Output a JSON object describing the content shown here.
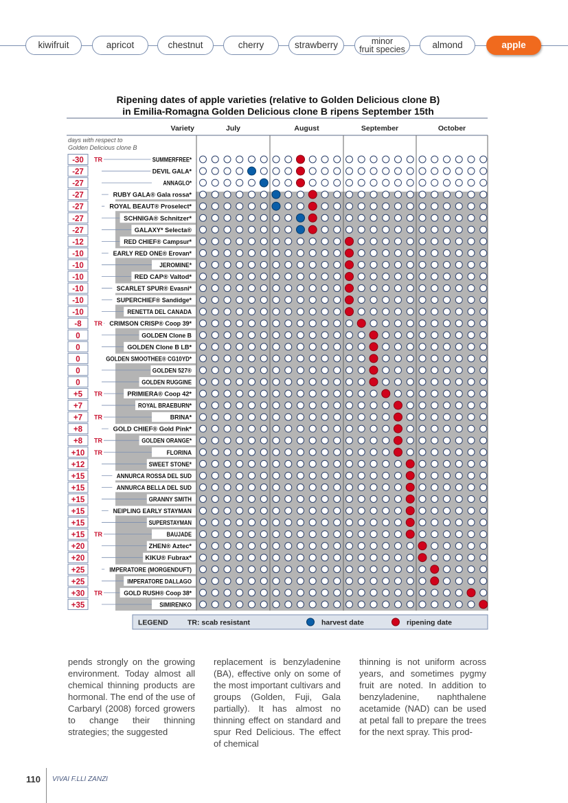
{
  "tabs": [
    {
      "label": "kiwifruit"
    },
    {
      "label": "apricot"
    },
    {
      "label": "chestnut"
    },
    {
      "label": "cherry"
    },
    {
      "label": "strawberry"
    },
    {
      "label": "minor",
      "label2": "fruit species"
    },
    {
      "label": "almond"
    },
    {
      "label": "apple",
      "active": true
    }
  ],
  "title": {
    "line1": "Ripening dates of apple varieties (relative to Golden Delicious clone B)",
    "line2": "in Emilia-Romagna Golden Delicious clone B ripens September 15th"
  },
  "chart_data": {
    "type": "table",
    "header": {
      "variety": "Variety",
      "months": [
        "July",
        "August",
        "September",
        "October"
      ]
    },
    "note_line1": "days with respect to",
    "note_line2": "Golden Delicious clone B",
    "days_per_month": [
      6,
      6,
      6,
      6
    ],
    "rows": [
      {
        "days": "-30",
        "tr": "TR",
        "name": "SUMMERFREE*",
        "ripen": 8
      },
      {
        "days": "-27",
        "tr": "",
        "name": "DEVIL GALA*",
        "harvest": 4,
        "ripen": 8
      },
      {
        "days": "-27",
        "tr": "",
        "name": "ANNAGLO*",
        "harvest": 5,
        "ripen": 8
      },
      {
        "days": "-27",
        "tr": "",
        "name": "RUBY GALA® Gala rossa*",
        "harvest": 6,
        "ripen": 9
      },
      {
        "days": "-27",
        "tr": "",
        "name": "ROYAL BEAUT® Proselect*",
        "harvest": 6,
        "ripen": 9
      },
      {
        "days": "-27",
        "tr": "",
        "name": "SCHNIGA® Schnitzer*",
        "harvest": 8,
        "ripen": 9
      },
      {
        "days": "-27",
        "tr": "",
        "name": "GALAXY* Selecta®",
        "harvest": 8,
        "ripen": 9
      },
      {
        "days": "-12",
        "tr": "",
        "name": "RED CHIEF® Campsur*",
        "ripen": 12
      },
      {
        "days": "-10",
        "tr": "",
        "name": "EARLY RED ONE® Erovan*",
        "ripen": 12
      },
      {
        "days": "-10",
        "tr": "",
        "name": "JEROMINE*",
        "ripen": 12
      },
      {
        "days": "-10",
        "tr": "",
        "name": "RED CAP® Valtod*",
        "ripen": 12
      },
      {
        "days": "-10",
        "tr": "",
        "name": "SCARLET SPUR® Evasni*",
        "ripen": 12
      },
      {
        "days": "-10",
        "tr": "",
        "name": "SUPERCHIEF® Sandidge*",
        "ripen": 12
      },
      {
        "days": "-10",
        "tr": "",
        "name": "RENETTA DEL CANADA",
        "ripen": 12
      },
      {
        "days": "-8",
        "tr": "TR",
        "name": "CRIMSON CRISP® Coop 39*",
        "ripen": 13
      },
      {
        "days": "0",
        "tr": "",
        "name": "GOLDEN Clone B",
        "ripen": 14
      },
      {
        "days": "0",
        "tr": "",
        "name": "GOLDEN Clone B LB*",
        "ripen": 14
      },
      {
        "days": "0",
        "tr": "",
        "name": "GOLDEN SMOOTHEE® CG10YD*",
        "ripen": 14
      },
      {
        "days": "0",
        "tr": "",
        "name": "GOLDEN 527®",
        "ripen": 14
      },
      {
        "days": "0",
        "tr": "",
        "name": "GOLDEN RUGGINE",
        "ripen": 14
      },
      {
        "days": "+5",
        "tr": "TR",
        "name": "PRIMIERA® Coop 42*",
        "ripen": 15
      },
      {
        "days": "+7",
        "tr": "",
        "name": "ROYAL BRAEBURN*",
        "ripen": 16
      },
      {
        "days": "+7",
        "tr": "TR",
        "name": "BRINA*",
        "ripen": 16
      },
      {
        "days": "+8",
        "tr": "",
        "name": "GOLD CHIEF® Gold Pink*",
        "ripen": 16
      },
      {
        "days": "+8",
        "tr": "TR",
        "name": "GOLDEN ORANGE*",
        "ripen": 16
      },
      {
        "days": "+10",
        "tr": "TR",
        "name": "FLORINA",
        "ripen": 16
      },
      {
        "days": "+12",
        "tr": "",
        "name": "SWEET STONE*",
        "ripen": 17
      },
      {
        "days": "+15",
        "tr": "",
        "name": "ANNURCA ROSSA DEL SUD",
        "ripen": 17
      },
      {
        "days": "+15",
        "tr": "",
        "name": "ANNURCA BELLA DEL SUD",
        "ripen": 17
      },
      {
        "days": "+15",
        "tr": "",
        "name": "GRANNY SMITH",
        "ripen": 17
      },
      {
        "days": "+15",
        "tr": "",
        "name": "NEIPLING EARLY STAYMAN",
        "ripen": 17
      },
      {
        "days": "+15",
        "tr": "",
        "name": "SUPERSTAYMAN",
        "ripen": 17
      },
      {
        "days": "+15",
        "tr": "TR",
        "name": "BAUJADE",
        "ripen": 17
      },
      {
        "days": "+20",
        "tr": "",
        "name": "ZHEN® Aztec*",
        "ripen": 18
      },
      {
        "days": "+20",
        "tr": "",
        "name": "KIKU® Fubrax*",
        "ripen": 18
      },
      {
        "days": "+25",
        "tr": "",
        "name": "IMPERATORE (MORGENDUFT)",
        "ripen": 19
      },
      {
        "days": "+25",
        "tr": "",
        "name": "IMPERATORE DALLAGO",
        "ripen": 19
      },
      {
        "days": "+30",
        "tr": "TR",
        "name": "GOLD RUSH® Coop 38*",
        "ripen": 22
      },
      {
        "days": "+35",
        "tr": "",
        "name": "SIMIRENKO",
        "ripen": 23
      }
    ],
    "legend": {
      "title": "LEGEND",
      "tr": "TR: scab resistant",
      "harvest": "harvest date",
      "ripening": "ripening date"
    },
    "colors": {
      "ripening": "#d0021b",
      "harvest": "#0a5ea8",
      "days_text": "#c8102e",
      "band": "#b4b4b4",
      "legend_bg": "#dde3ec"
    }
  },
  "body": {
    "col1": "pends strongly on the growing environment. Today almost all chemical thinning products are hormonal. The end of the use of Carbaryl (2008) forced growers to change their thinning strategies; the suggested",
    "col2": "replacement is benzyladenine (BA), effective only on some of the most important cultivars and groups (Golden, Fuji, Gala partially). It has almost no thinning effect on standard and spur Red Delicious. The effect of chemical",
    "col3": "thinning is not uniform across years, and sometimes pygmy fruit are noted. In addition to benzyladenine, naphthalene acetamide (NAD) can be used at petal fall to prepare the trees for the next spray. This prod-"
  },
  "footer": {
    "page": "110",
    "name": "VIVAI F.LLI ZANZI"
  }
}
